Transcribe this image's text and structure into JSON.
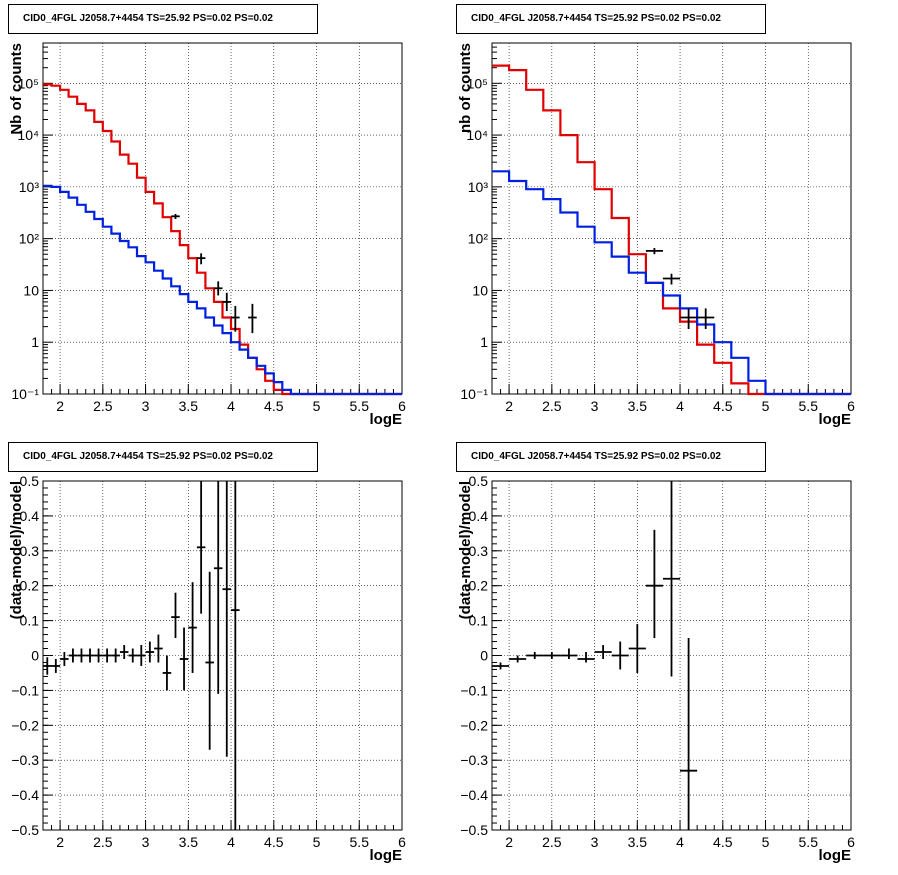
{
  "chart_data": [
    {
      "type": "step-histogram",
      "title": "CID0_4FGL J2058.7+4454 TS=25.92 PS=0.02 PS=0.02",
      "xlabel": "logE",
      "ylabel": "Nb of counts",
      "xlim": [
        1.8,
        6.0
      ],
      "ylim": [
        0.1,
        600000
      ],
      "yscale": "log",
      "grid": true,
      "x_ticks": [
        "2",
        "2.5",
        "3",
        "3.5",
        "4",
        "4.5",
        "5",
        "5.5",
        "6"
      ],
      "y_ticks": [
        "10⁻¹",
        "1",
        "10",
        "10²",
        "10³",
        "10⁴",
        "10⁵"
      ],
      "series": [
        {
          "color": "#e00000",
          "style": "step",
          "edges": [
            1.8,
            1.9,
            2.0,
            2.1,
            2.2,
            2.3,
            2.4,
            2.5,
            2.6,
            2.7,
            2.8,
            2.9,
            3.0,
            3.1,
            3.2,
            3.3,
            3.4,
            3.5,
            3.6,
            3.7,
            3.8,
            3.9,
            4.0,
            4.1,
            4.2,
            4.3,
            4.4,
            4.5,
            4.6,
            4.7,
            4.8,
            4.9,
            5.0,
            5.1,
            5.2,
            5.3,
            5.4,
            5.5,
            5.6,
            5.7,
            5.8,
            5.9,
            6.0
          ],
          "values": [
            95000,
            90000,
            75000,
            55000,
            40000,
            30000,
            18000,
            12000,
            7500,
            4200,
            2800,
            1500,
            800,
            480,
            260,
            140,
            75,
            42,
            22,
            11,
            6,
            3,
            1.8,
            0.9,
            0.5,
            0.3,
            0.18,
            0.12,
            0.09,
            0.09,
            0.09,
            0.09,
            0.09,
            0.09,
            0.09,
            0.09,
            0.09,
            0.09,
            0.09,
            0.09,
            0.09,
            0.09
          ]
        },
        {
          "color": "#0020e0",
          "style": "step",
          "edges": [
            1.8,
            1.9,
            2.0,
            2.1,
            2.2,
            2.3,
            2.4,
            2.5,
            2.6,
            2.7,
            2.8,
            2.9,
            3.0,
            3.1,
            3.2,
            3.3,
            3.4,
            3.5,
            3.6,
            3.7,
            3.8,
            3.9,
            4.0,
            4.1,
            4.2,
            4.3,
            4.4,
            4.5,
            4.6,
            4.7,
            4.8,
            4.9,
            5.0,
            5.1,
            5.2,
            5.3,
            5.4,
            5.5,
            5.6,
            5.7,
            5.8,
            5.9,
            6.0
          ],
          "values": [
            1050,
            1000,
            800,
            620,
            450,
            330,
            240,
            170,
            125,
            90,
            68,
            46,
            35,
            24,
            17,
            12,
            8.5,
            6,
            4.5,
            3,
            2.1,
            1.5,
            1,
            0.72,
            0.5,
            0.35,
            0.25,
            0.17,
            0.12,
            0.1,
            0.1,
            0.1,
            0.1,
            0.1,
            0.1,
            0.1,
            0.1,
            0.1,
            0.1,
            0.1,
            0.1,
            0.1
          ]
        },
        {
          "color": "#000000",
          "style": "errorbar",
          "points": [
            {
              "x": 3.35,
              "y": 270,
              "xerr": 0.05,
              "ylo": 240,
              "yhi": 300
            },
            {
              "x": 3.65,
              "y": 42,
              "xerr": 0.05,
              "ylo": 32,
              "yhi": 52
            },
            {
              "x": 3.85,
              "y": 11,
              "xerr": 0.05,
              "ylo": 8,
              "yhi": 15
            },
            {
              "x": 3.95,
              "y": 6,
              "xerr": 0.05,
              "ylo": 4,
              "yhi": 9
            },
            {
              "x": 4.05,
              "y": 3,
              "xerr": 0.05,
              "ylo": 1.6,
              "yhi": 5
            },
            {
              "x": 4.25,
              "y": 3,
              "xerr": 0.05,
              "ylo": 1.5,
              "yhi": 5.5
            }
          ]
        }
      ]
    },
    {
      "type": "step-histogram",
      "title": "CID0_4FGL J2058.7+4454 TS=25.92 PS=0.02 PS=0.02",
      "xlabel": "logE",
      "ylabel": "nb of counts",
      "xlim": [
        1.8,
        6.0
      ],
      "ylim": [
        0.1,
        600000
      ],
      "yscale": "log",
      "grid": true,
      "x_ticks": [
        "2",
        "2.5",
        "3",
        "3.5",
        "4",
        "4.5",
        "5",
        "5.5",
        "6"
      ],
      "y_ticks": [
        "10⁻¹",
        "1",
        "10",
        "10²",
        "10³",
        "10⁴",
        "10⁵"
      ],
      "series": [
        {
          "color": "#e00000",
          "style": "step",
          "edges": [
            1.8,
            2.0,
            2.2,
            2.4,
            2.6,
            2.8,
            3.0,
            3.2,
            3.4,
            3.6,
            3.8,
            4.0,
            4.2,
            4.4,
            4.6,
            4.8,
            5.0,
            5.2,
            5.4,
            5.6,
            5.8,
            6.0
          ],
          "values": [
            220000,
            180000,
            75000,
            30000,
            10000,
            3000,
            900,
            250,
            50,
            14,
            4.5,
            2.5,
            0.9,
            0.4,
            0.16,
            0.09,
            0.09,
            0.09,
            0.09,
            0.09,
            0.09
          ]
        },
        {
          "color": "#0020e0",
          "style": "step",
          "edges": [
            1.8,
            2.0,
            2.2,
            2.4,
            2.6,
            2.8,
            3.0,
            3.2,
            3.4,
            3.6,
            3.8,
            4.0,
            4.2,
            4.4,
            4.6,
            4.8,
            5.0,
            5.2,
            5.4,
            5.6,
            5.8,
            6.0
          ],
          "values": [
            2000,
            1300,
            900,
            580,
            320,
            170,
            85,
            45,
            22,
            14,
            8,
            4.5,
            2.2,
            1,
            0.5,
            0.18,
            0.1,
            0.1,
            0.1,
            0.1,
            0.1
          ]
        },
        {
          "color": "#000000",
          "style": "errorbar",
          "points": [
            {
              "x": 3.7,
              "y": 58,
              "xerr": 0.1,
              "ylo": 50,
              "yhi": 66
            },
            {
              "x": 3.9,
              "y": 17,
              "xerr": 0.1,
              "ylo": 13,
              "yhi": 21
            },
            {
              "x": 4.1,
              "y": 3,
              "xerr": 0.1,
              "ylo": 1.8,
              "yhi": 4.5
            },
            {
              "x": 4.3,
              "y": 3,
              "xerr": 0.1,
              "ylo": 1.8,
              "yhi": 4.5
            }
          ]
        }
      ]
    },
    {
      "type": "errorbar",
      "title": "CID0_4FGL J2058.7+4454 TS=25.92 PS=0.02 PS=0.02",
      "xlabel": "logE",
      "ylabel": "(data-model)/model",
      "xlim": [
        1.8,
        6.0
      ],
      "ylim": [
        -0.5,
        0.5
      ],
      "yscale": "linear",
      "grid": true,
      "x_ticks": [
        "2",
        "2.5",
        "3",
        "3.5",
        "4",
        "4.5",
        "5",
        "5.5",
        "6"
      ],
      "y_ticks": [
        "−0.5",
        "−0.4",
        "−0.3",
        "−0.2",
        "−0.1",
        "0",
        "0.1",
        "0.2",
        "0.3",
        "0.4",
        "0.5"
      ],
      "series": [
        {
          "color": "#000000",
          "points": [
            {
              "x": 1.85,
              "y": -0.03,
              "xerr": 0.05,
              "ylo": -0.055,
              "yhi": -0.005
            },
            {
              "x": 1.95,
              "y": -0.03,
              "xerr": 0.05,
              "ylo": -0.05,
              "yhi": -0.01
            },
            {
              "x": 2.05,
              "y": -0.01,
              "xerr": 0.05,
              "ylo": -0.03,
              "yhi": 0.01
            },
            {
              "x": 2.15,
              "y": 0.0,
              "xerr": 0.05,
              "ylo": -0.02,
              "yhi": 0.02
            },
            {
              "x": 2.25,
              "y": 0.0,
              "xerr": 0.05,
              "ylo": -0.02,
              "yhi": 0.02
            },
            {
              "x": 2.35,
              "y": 0.0,
              "xerr": 0.05,
              "ylo": -0.02,
              "yhi": 0.02
            },
            {
              "x": 2.45,
              "y": 0.0,
              "xerr": 0.05,
              "ylo": -0.02,
              "yhi": 0.02
            },
            {
              "x": 2.55,
              "y": 0.0,
              "xerr": 0.05,
              "ylo": -0.02,
              "yhi": 0.02
            },
            {
              "x": 2.65,
              "y": 0.0,
              "xerr": 0.05,
              "ylo": -0.02,
              "yhi": 0.02
            },
            {
              "x": 2.75,
              "y": 0.01,
              "xerr": 0.05,
              "ylo": -0.01,
              "yhi": 0.03
            },
            {
              "x": 2.85,
              "y": 0.0,
              "xerr": 0.05,
              "ylo": -0.02,
              "yhi": 0.02
            },
            {
              "x": 2.95,
              "y": 0.0,
              "xerr": 0.05,
              "ylo": -0.03,
              "yhi": 0.03
            },
            {
              "x": 3.05,
              "y": 0.01,
              "xerr": 0.05,
              "ylo": -0.02,
              "yhi": 0.04
            },
            {
              "x": 3.15,
              "y": 0.02,
              "xerr": 0.05,
              "ylo": -0.02,
              "yhi": 0.06
            },
            {
              "x": 3.25,
              "y": -0.05,
              "xerr": 0.05,
              "ylo": -0.1,
              "yhi": 0.0
            },
            {
              "x": 3.35,
              "y": 0.11,
              "xerr": 0.05,
              "ylo": 0.05,
              "yhi": 0.18
            },
            {
              "x": 3.45,
              "y": -0.01,
              "xerr": 0.05,
              "ylo": -0.1,
              "yhi": 0.08
            },
            {
              "x": 3.55,
              "y": 0.08,
              "xerr": 0.05,
              "ylo": -0.05,
              "yhi": 0.21
            },
            {
              "x": 3.65,
              "y": 0.31,
              "xerr": 0.05,
              "ylo": 0.12,
              "yhi": 0.5
            },
            {
              "x": 3.75,
              "y": -0.02,
              "xerr": 0.05,
              "ylo": -0.27,
              "yhi": 0.24
            },
            {
              "x": 3.85,
              "y": 0.25,
              "xerr": 0.05,
              "ylo": -0.11,
              "yhi": 0.5
            },
            {
              "x": 3.95,
              "y": 0.19,
              "xerr": 0.05,
              "ylo": -0.29,
              "yhi": 0.5
            },
            {
              "x": 4.05,
              "y": 0.13,
              "xerr": 0.05,
              "ylo": -0.5,
              "yhi": 0.5
            }
          ]
        }
      ]
    },
    {
      "type": "errorbar",
      "title": "CID0_4FGL J2058.7+4454 TS=25.92 PS=0.02 PS=0.02",
      "xlabel": "logE",
      "ylabel": "(data-model)/model",
      "xlim": [
        1.8,
        6.0
      ],
      "ylim": [
        -0.5,
        0.5
      ],
      "yscale": "linear",
      "grid": true,
      "x_ticks": [
        "2",
        "2.5",
        "3",
        "3.5",
        "4",
        "4.5",
        "5",
        "5.5",
        "6"
      ],
      "y_ticks": [
        "−0.5",
        "−0.4",
        "−0.3",
        "−0.2",
        "−0.1",
        "0",
        "0.1",
        "0.2",
        "0.3",
        "0.4",
        "0.5"
      ],
      "series": [
        {
          "color": "#000000",
          "points": [
            {
              "x": 1.9,
              "y": -0.03,
              "xerr": 0.1,
              "ylo": -0.04,
              "yhi": -0.02
            },
            {
              "x": 2.1,
              "y": -0.01,
              "xerr": 0.1,
              "ylo": -0.02,
              "yhi": 0.0
            },
            {
              "x": 2.3,
              "y": 0.0,
              "xerr": 0.1,
              "ylo": -0.01,
              "yhi": 0.01
            },
            {
              "x": 2.5,
              "y": 0.0,
              "xerr": 0.1,
              "ylo": -0.01,
              "yhi": 0.01
            },
            {
              "x": 2.7,
              "y": 0.0,
              "xerr": 0.1,
              "ylo": -0.01,
              "yhi": 0.02
            },
            {
              "x": 2.9,
              "y": -0.01,
              "xerr": 0.1,
              "ylo": -0.02,
              "yhi": 0.01
            },
            {
              "x": 3.1,
              "y": 0.01,
              "xerr": 0.1,
              "ylo": -0.01,
              "yhi": 0.03
            },
            {
              "x": 3.3,
              "y": 0.0,
              "xerr": 0.1,
              "ylo": -0.04,
              "yhi": 0.04
            },
            {
              "x": 3.5,
              "y": 0.02,
              "xerr": 0.1,
              "ylo": -0.05,
              "yhi": 0.09
            },
            {
              "x": 3.7,
              "y": 0.2,
              "xerr": 0.1,
              "ylo": 0.05,
              "yhi": 0.36
            },
            {
              "x": 3.9,
              "y": 0.22,
              "xerr": 0.1,
              "ylo": -0.06,
              "yhi": 0.5
            },
            {
              "x": 4.1,
              "y": -0.33,
              "xerr": 0.1,
              "ylo": -0.5,
              "yhi": 0.05
            }
          ]
        }
      ]
    }
  ]
}
